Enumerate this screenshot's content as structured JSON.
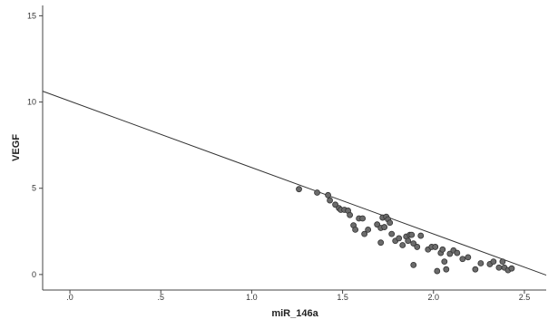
{
  "chart_data": {
    "type": "scatter",
    "title": "",
    "xlabel": "miR_146a",
    "ylabel": "VEGF",
    "xlim": [
      -0.15,
      2.62
    ],
    "ylim": [
      -0.9,
      15.6
    ],
    "x_ticks": [
      0,
      0.5,
      1.0,
      1.5,
      2.0,
      2.5
    ],
    "x_tick_labels": [
      ".0",
      ".5",
      "1.0",
      "1.5",
      "2.0",
      "2.5"
    ],
    "y_ticks": [
      0,
      5,
      10,
      15
    ],
    "y_tick_labels": [
      "0",
      "5",
      "10",
      "15"
    ],
    "grid": false,
    "legend": "none",
    "colors": {
      "point_fill": "#6b6b6b",
      "point_stroke": "#333333",
      "line": "#333333",
      "axis": "#444444"
    },
    "fit_line": {
      "intercept": 10.05,
      "slope": -3.85
    },
    "points": [
      {
        "x": 1.26,
        "y": 4.95
      },
      {
        "x": 1.36,
        "y": 4.75
      },
      {
        "x": 1.42,
        "y": 4.6
      },
      {
        "x": 1.43,
        "y": 4.3
      },
      {
        "x": 1.46,
        "y": 4.05
      },
      {
        "x": 1.48,
        "y": 3.85
      },
      {
        "x": 1.49,
        "y": 3.75
      },
      {
        "x": 1.51,
        "y": 3.75
      },
      {
        "x": 1.53,
        "y": 3.7
      },
      {
        "x": 1.54,
        "y": 3.45
      },
      {
        "x": 1.56,
        "y": 2.85
      },
      {
        "x": 1.57,
        "y": 2.6
      },
      {
        "x": 1.59,
        "y": 3.25
      },
      {
        "x": 1.61,
        "y": 3.25
      },
      {
        "x": 1.62,
        "y": 2.35
      },
      {
        "x": 1.64,
        "y": 2.6
      },
      {
        "x": 1.69,
        "y": 2.9
      },
      {
        "x": 1.71,
        "y": 2.7
      },
      {
        "x": 1.72,
        "y": 3.3
      },
      {
        "x": 1.73,
        "y": 2.75
      },
      {
        "x": 1.74,
        "y": 3.35
      },
      {
        "x": 1.75,
        "y": 3.2
      },
      {
        "x": 1.76,
        "y": 3.0
      },
      {
        "x": 1.71,
        "y": 1.85
      },
      {
        "x": 1.77,
        "y": 2.35
      },
      {
        "x": 1.79,
        "y": 1.95
      },
      {
        "x": 1.81,
        "y": 2.1
      },
      {
        "x": 1.83,
        "y": 1.7
      },
      {
        "x": 1.85,
        "y": 2.2
      },
      {
        "x": 1.86,
        "y": 1.95
      },
      {
        "x": 1.87,
        "y": 2.3
      },
      {
        "x": 1.88,
        "y": 2.3
      },
      {
        "x": 1.89,
        "y": 1.8
      },
      {
        "x": 1.89,
        "y": 0.55
      },
      {
        "x": 1.91,
        "y": 1.6
      },
      {
        "x": 1.93,
        "y": 2.25
      },
      {
        "x": 1.97,
        "y": 1.45
      },
      {
        "x": 1.99,
        "y": 1.6
      },
      {
        "x": 2.01,
        "y": 1.6
      },
      {
        "x": 2.02,
        "y": 0.2
      },
      {
        "x": 2.04,
        "y": 1.25
      },
      {
        "x": 2.05,
        "y": 1.45
      },
      {
        "x": 2.06,
        "y": 0.75
      },
      {
        "x": 2.07,
        "y": 0.3
      },
      {
        "x": 2.09,
        "y": 1.2
      },
      {
        "x": 2.11,
        "y": 1.4
      },
      {
        "x": 2.13,
        "y": 1.25
      },
      {
        "x": 2.16,
        "y": 0.9
      },
      {
        "x": 2.19,
        "y": 1.0
      },
      {
        "x": 2.23,
        "y": 0.3
      },
      {
        "x": 2.26,
        "y": 0.65
      },
      {
        "x": 2.31,
        "y": 0.6
      },
      {
        "x": 2.33,
        "y": 0.75
      },
      {
        "x": 2.36,
        "y": 0.4
      },
      {
        "x": 2.38,
        "y": 0.75
      },
      {
        "x": 2.39,
        "y": 0.4
      },
      {
        "x": 2.41,
        "y": 0.25
      },
      {
        "x": 2.43,
        "y": 0.35
      }
    ]
  }
}
